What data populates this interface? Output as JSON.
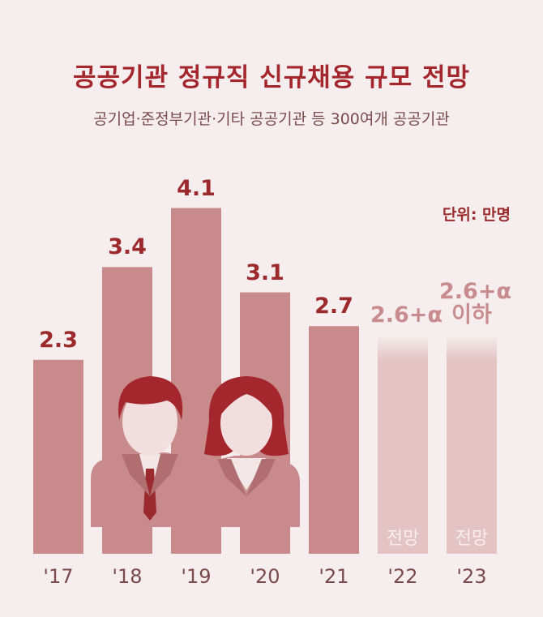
{
  "chart_data": {
    "type": "bar",
    "title": "공공기관 정규직 신규채용 규모 전망",
    "subtitle": "공기업·준정부기관·기타 공공기관 등 300여개 공공기관",
    "unit_label": "단위: 만명",
    "categories": [
      "'17",
      "'18",
      "'19",
      "'20",
      "'21",
      "'22",
      "'23"
    ],
    "values": [
      2.3,
      3.4,
      4.1,
      3.1,
      2.7,
      2.6,
      2.6
    ],
    "value_labels": [
      "2.3",
      "3.4",
      "4.1",
      "3.1",
      "2.7",
      "2.6+α",
      "2.6+α 이하"
    ],
    "forecast": [
      false,
      false,
      false,
      false,
      false,
      true,
      true
    ],
    "forecast_label": "전망",
    "colors": [
      "#c98a8c",
      "#c98a8c",
      "#c98a8c",
      "#c98a8c",
      "#c98a8c",
      "#e3c3c4",
      "#e3c3c4"
    ]
  }
}
